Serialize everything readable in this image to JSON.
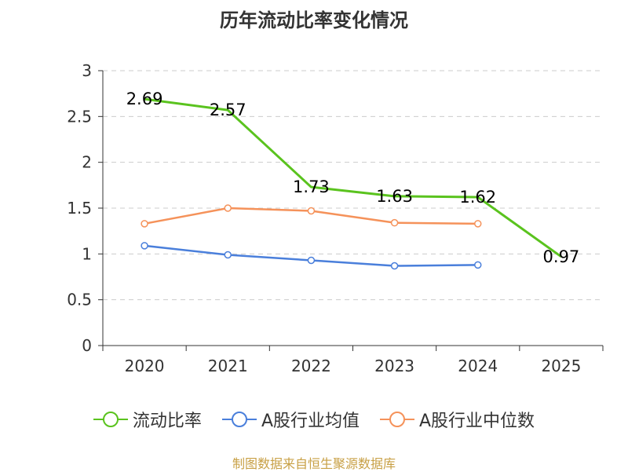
{
  "chart_data": {
    "type": "line",
    "title": "历年流动比率变化情况",
    "categories": [
      "2020",
      "2021",
      "2022",
      "2023",
      "2024",
      "2025"
    ],
    "ylim": [
      0,
      3
    ],
    "yticks": [
      "0",
      "0.5",
      "1",
      "1.5",
      "2",
      "2.5",
      "3"
    ],
    "grid": true,
    "legend_position": "bottom",
    "series": [
      {
        "name": "流动比率",
        "color": "#5ac31e",
        "values": [
          2.69,
          2.57,
          1.73,
          1.63,
          1.62,
          0.97
        ],
        "labels": [
          "2.69",
          "2.57",
          "1.73",
          "1.63",
          "1.62",
          "0.97"
        ]
      },
      {
        "name": "A股行业均值",
        "color": "#4a7fdb",
        "values": [
          1.09,
          0.99,
          0.93,
          0.87,
          0.88,
          null
        ]
      },
      {
        "name": "A股行业中位数",
        "color": "#f5925a",
        "values": [
          1.33,
          1.5,
          1.47,
          1.34,
          1.33,
          null
        ]
      }
    ]
  },
  "source": "制图数据来自恒生聚源数据库"
}
